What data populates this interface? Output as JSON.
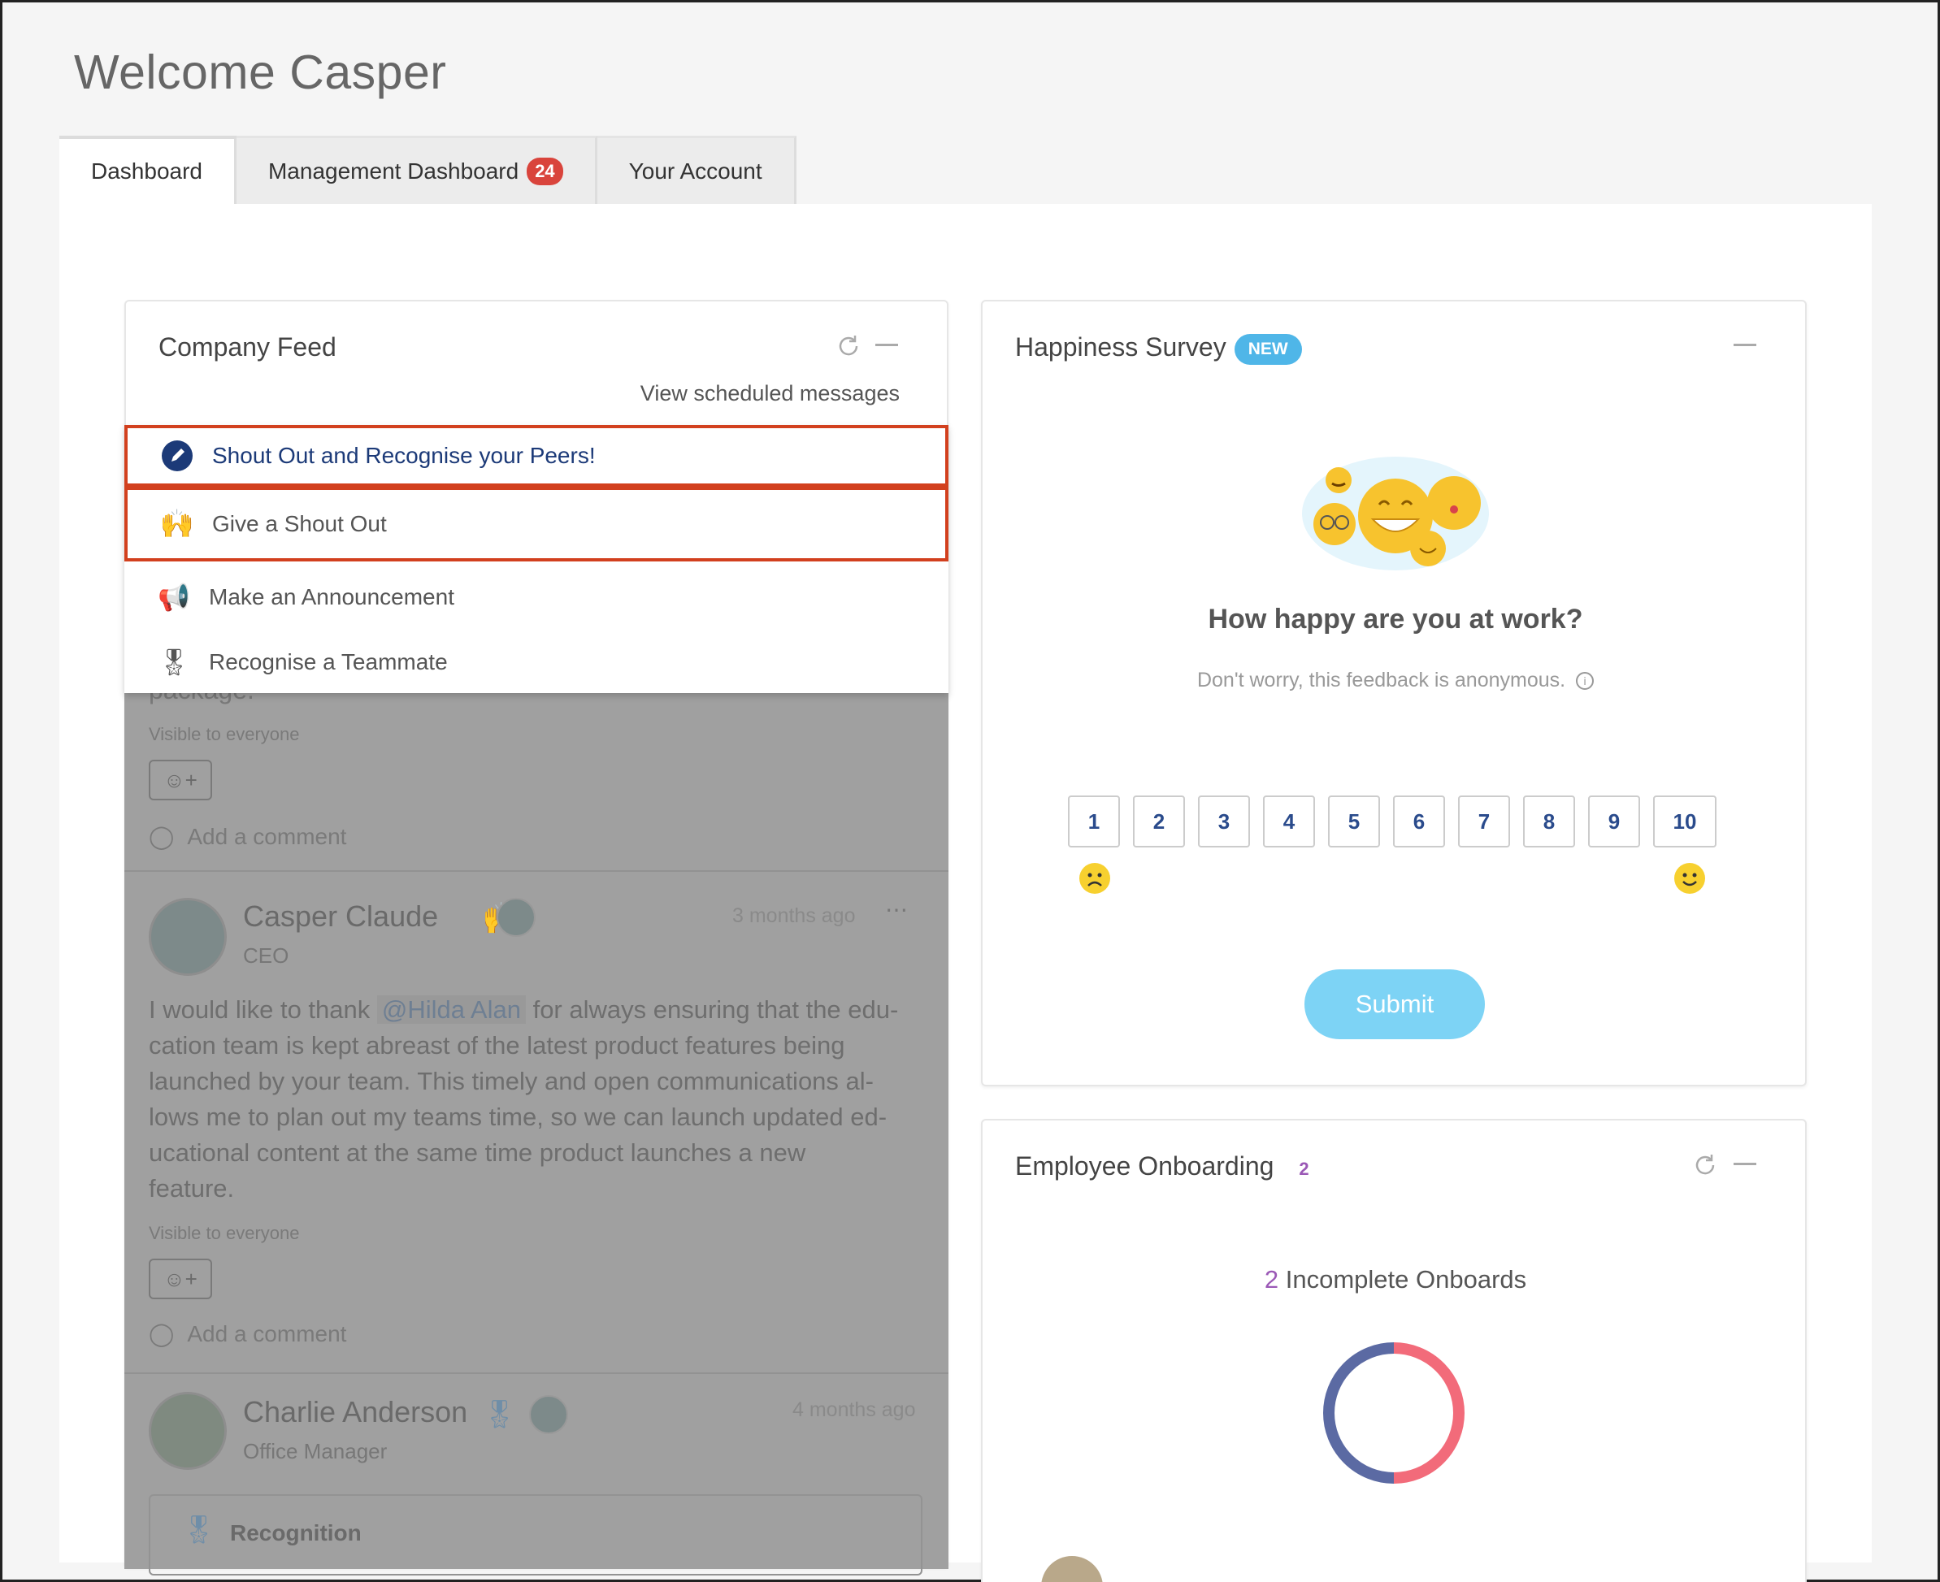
{
  "page": {
    "title": "Welcome Casper"
  },
  "tabs": [
    {
      "label": "Dashboard",
      "active": true
    },
    {
      "label": "Management Dashboard",
      "badge": "24"
    },
    {
      "label": "Your Account"
    }
  ],
  "company_feed": {
    "title": "Company Feed",
    "view_scheduled": "View scheduled messages",
    "menu": [
      {
        "label": "Shout Out and Recognise your Peers!",
        "icon": "pencil-icon"
      },
      {
        "label": "Give a Shout Out",
        "icon": "raised-hands-icon"
      },
      {
        "label": "Make an Announcement",
        "icon": "megaphone-icon"
      },
      {
        "label": "Recognise a Teammate",
        "icon": "medal-icon"
      }
    ],
    "post0": {
      "tail_text": "package.",
      "visibility": "Visible to everyone",
      "comment_placeholder": "Add a comment"
    },
    "post1": {
      "author": "Casper Claude",
      "role": "CEO",
      "time": "3 months ago",
      "body_line1_pre": "I would like to thank",
      "mention": "@Hilda Alan",
      "body_line1_post": "for always ensuring that the edu-",
      "body_lines": [
        "cation team is kept abreast of the latest product features being",
        "launched by your team. This timely and open communications al-",
        "lows me to plan out my teams time, so we can launch updated ed-",
        "ucational content at the same time product launches a new",
        "feature."
      ],
      "visibility": "Visible to everyone",
      "comment_placeholder": "Add a comment"
    },
    "post2": {
      "author": "Charlie Anderson",
      "role": "Office Manager",
      "time": "4 months ago",
      "tag": "Recognition"
    }
  },
  "happiness": {
    "title": "Happiness Survey",
    "badge": "NEW",
    "question": "How happy are you at work?",
    "subtitle": "Don't worry, this feedback is anonymous.",
    "scale": [
      "1",
      "2",
      "3",
      "4",
      "5",
      "6",
      "7",
      "8",
      "9",
      "10"
    ],
    "submit": "Submit"
  },
  "onboarding": {
    "title": "Employee Onboarding",
    "count": "2",
    "summary_count": "2",
    "summary_label": "Incomplete Onboards",
    "colors": {
      "accent": "#9b59b6",
      "ring_left": "#5b6aa3",
      "ring_right": "#f26b7a"
    }
  },
  "colors": {
    "highlight": "#d2401e",
    "link": "#2a4b8c"
  }
}
